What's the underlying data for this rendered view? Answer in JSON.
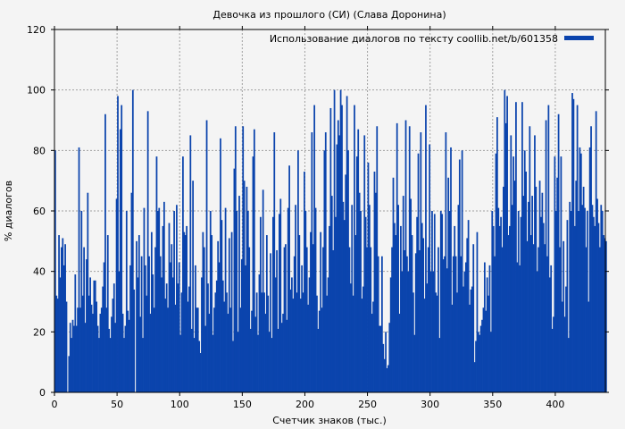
{
  "chart_data": {
    "type": "bar",
    "title": "Девочка из прошлого (СИ) (Слава Доронина)",
    "xlabel": "Счетчик знаков (тыс.)",
    "ylabel": "% диалогов",
    "xlim": [
      0,
      440
    ],
    "ylim": [
      0,
      120
    ],
    "xticks": [
      0,
      50,
      100,
      150,
      200,
      250,
      300,
      350,
      400
    ],
    "yticks": [
      0,
      20,
      40,
      60,
      80,
      100,
      120
    ],
    "grid": true,
    "legend_position": "top-right",
    "bar_width": 1,
    "colors": {
      "bar": "#0b44ad",
      "grid": "#a0a0a0",
      "frame": "#000000",
      "background": "#f4f4f4"
    },
    "series": [
      {
        "name": "Использование диалогов по тексту coollib.net/b/601358",
        "values": [
          80,
          32,
          31,
          52,
          38,
          48,
          51,
          42,
          49,
          30,
          0,
          12,
          23,
          18,
          24,
          22,
          39,
          22,
          28,
          81,
          28,
          60,
          32,
          48,
          23,
          44,
          66,
          32,
          38,
          29,
          26,
          37,
          37,
          30,
          22,
          18,
          26,
          28,
          35,
          43,
          92,
          28,
          52,
          21,
          18,
          25,
          31,
          36,
          23,
          64,
          98,
          40,
          87,
          95,
          26,
          18,
          22,
          60,
          27,
          24,
          42,
          66,
          100,
          34,
          0,
          50,
          38,
          52,
          25,
          45,
          18,
          61,
          42,
          32,
          93,
          45,
          26,
          53,
          39,
          28,
          48,
          78,
          60,
          61,
          45,
          38,
          55,
          63,
          31,
          36,
          28,
          56,
          43,
          49,
          38,
          60,
          29,
          62,
          36,
          43,
          19,
          33,
          78,
          53,
          52,
          55,
          30,
          35,
          85,
          21,
          70,
          18,
          42,
          28,
          28,
          17,
          13,
          38,
          53,
          48,
          22,
          90,
          36,
          26,
          60,
          52,
          19,
          28,
          33,
          37,
          50,
          43,
          84,
          57,
          37,
          30,
          61,
          33,
          26,
          51,
          28,
          53,
          17,
          74,
          88,
          60,
          20,
          65,
          28,
          44,
          88,
          70,
          42,
          68,
          60,
          48,
          21,
          27,
          78,
          87,
          25,
          33,
          19,
          39,
          58,
          33,
          67,
          33,
          26,
          52,
          32,
          20,
          46,
          18,
          58,
          86,
          38,
          47,
          21,
          59,
          64,
          23,
          26,
          48,
          49,
          24,
          61,
          75,
          34,
          38,
          31,
          45,
          62,
          33,
          80,
          52,
          31,
          42,
          33,
          73,
          60,
          48,
          29,
          38,
          53,
          86,
          49,
          95,
          61,
          32,
          21,
          27,
          53,
          28,
          48,
          80,
          86,
          32,
          38,
          55,
          94,
          65,
          47,
          100,
          58,
          82,
          90,
          85,
          100,
          95,
          63,
          57,
          72,
          98,
          80,
          48,
          36,
          62,
          32,
          95,
          52,
          78,
          87,
          66,
          60,
          31,
          35,
          85,
          58,
          48,
          76,
          62,
          48,
          26,
          30,
          73,
          66,
          88,
          45,
          22,
          22,
          45,
          16,
          11,
          20,
          8,
          9,
          23,
          38,
          48,
          71,
          56,
          52,
          89,
          62,
          26,
          55,
          40,
          65,
          47,
          90,
          45,
          40,
          88,
          64,
          52,
          33,
          19,
          46,
          58,
          79,
          47,
          86,
          56,
          51,
          31,
          95,
          36,
          48,
          82,
          40,
          60,
          40,
          59,
          33,
          32,
          48,
          18,
          60,
          59,
          44,
          45,
          86,
          41,
          71,
          60,
          81,
          29,
          45,
          55,
          45,
          33,
          62,
          77,
          45,
          80,
          35,
          40,
          43,
          51,
          57,
          29,
          34,
          35,
          49,
          10,
          17,
          53,
          20,
          19,
          22,
          24,
          28,
          43,
          27,
          38,
          32,
          42,
          20,
          60,
          55,
          45,
          79,
          91,
          61,
          55,
          58,
          48,
          68,
          100,
          89,
          98,
          52,
          55,
          85,
          62,
          78,
          70,
          96,
          43,
          60,
          42,
          58,
          96,
          65,
          80,
          73,
          50,
          63,
          88,
          52,
          65,
          49,
          85,
          68,
          40,
          48,
          70,
          58,
          66,
          56,
          49,
          90,
          45,
          95,
          38,
          42,
          21,
          25,
          78,
          60,
          71,
          92,
          48,
          78,
          30,
          50,
          25,
          35,
          57,
          18,
          63,
          60,
          99,
          97,
          55,
          70,
          95,
          60,
          81,
          79,
          62,
          68,
          61,
          48,
          60,
          30,
          81,
          88,
          62,
          58,
          55,
          93,
          64,
          56,
          48,
          62,
          60,
          52,
          51,
          50
        ]
      }
    ]
  }
}
